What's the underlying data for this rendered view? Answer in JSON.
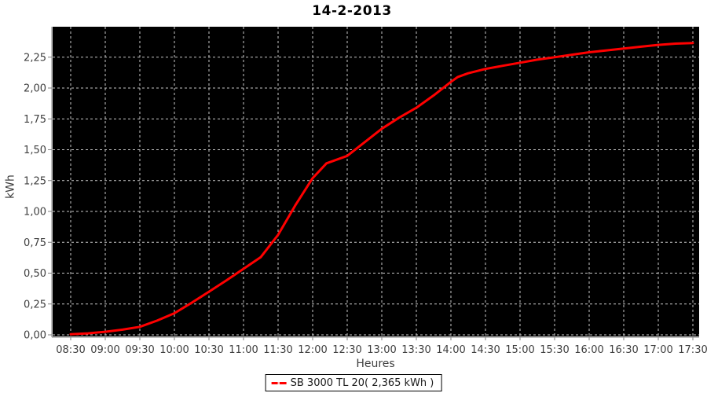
{
  "chart_data": {
    "type": "line",
    "title": "14-2-2013",
    "xlabel": "Heures",
    "ylabel": "kWh",
    "x_tick_labels": [
      "08:30",
      "09:00",
      "09:30",
      "10:00",
      "10:30",
      "11:00",
      "11:30",
      "12:00",
      "12:30",
      "13:00",
      "13:30",
      "14:00",
      "14:30",
      "15:00",
      "15:30",
      "16:00",
      "16:30",
      "17:00",
      "17:30"
    ],
    "y_tick_values": [
      0,
      0.25,
      0.5,
      0.75,
      1.0,
      1.25,
      1.5,
      1.75,
      2.0,
      2.25
    ],
    "y_tick_labels": [
      "0,00",
      "0,25",
      "0,50",
      "0,75",
      "1,00",
      "1,25",
      "1,50",
      "1,75",
      "2,00",
      "2,25"
    ],
    "ylim": [
      0,
      2.48
    ],
    "grid": {
      "show": true,
      "style": "dashed"
    },
    "legend_position": "bottom",
    "series": [
      {
        "name": "SB 3000 TL 20( 2,365 kWh )",
        "total_kwh_label": "2,365 kWh",
        "points": [
          [
            "08:30",
            0.005
          ],
          [
            "08:45",
            0.012
          ],
          [
            "09:00",
            0.025
          ],
          [
            "09:15",
            0.042
          ],
          [
            "09:30",
            0.065
          ],
          [
            "09:45",
            0.115
          ],
          [
            "10:00",
            0.175
          ],
          [
            "10:15",
            0.26
          ],
          [
            "10:30",
            0.35
          ],
          [
            "10:45",
            0.44
          ],
          [
            "11:00",
            0.535
          ],
          [
            "11:15",
            0.63
          ],
          [
            "11:30",
            0.81
          ],
          [
            "11:45",
            1.05
          ],
          [
            "12:00",
            1.27
          ],
          [
            "12:12",
            1.39
          ],
          [
            "12:30",
            1.45
          ],
          [
            "12:45",
            1.56
          ],
          [
            "13:00",
            1.67
          ],
          [
            "13:15",
            1.76
          ],
          [
            "13:30",
            1.84
          ],
          [
            "13:45",
            1.94
          ],
          [
            "14:00",
            2.05
          ],
          [
            "14:06",
            2.09
          ],
          [
            "14:15",
            2.12
          ],
          [
            "14:30",
            2.155
          ],
          [
            "14:45",
            2.18
          ],
          [
            "15:00",
            2.205
          ],
          [
            "15:15",
            2.23
          ],
          [
            "15:30",
            2.25
          ],
          [
            "15:45",
            2.27
          ],
          [
            "16:00",
            2.29
          ],
          [
            "16:15",
            2.305
          ],
          [
            "16:30",
            2.32
          ],
          [
            "16:45",
            2.335
          ],
          [
            "17:00",
            2.35
          ],
          [
            "17:15",
            2.36
          ],
          [
            "17:30",
            2.365
          ]
        ]
      }
    ]
  },
  "colors": {
    "series_line": "#ff0000",
    "plot_background": "#000000",
    "grid_line": "#c8c8c8",
    "axis_line": "#808080",
    "tick_label": "#3f3f3f",
    "title": "#000000"
  }
}
